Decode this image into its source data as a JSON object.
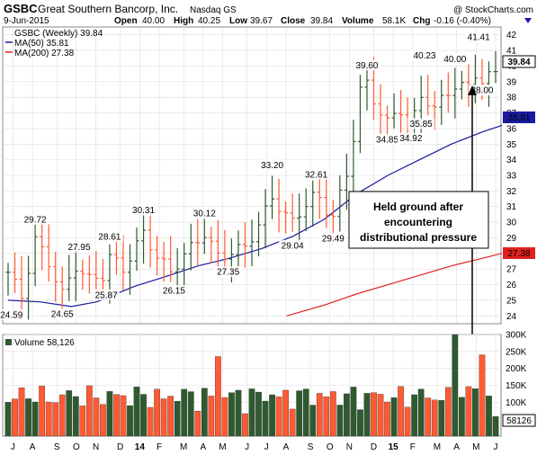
{
  "header": {
    "ticker": "GSBC",
    "company": "Great Southern Bancorp, Inc.",
    "exchange": "Nasdaq GS",
    "date": "9-Jun-2015",
    "open_label": "Open",
    "open": "40.00",
    "high_label": "High",
    "high": "40.25",
    "low_label": "Low",
    "low": "39.67",
    "close_label": "Close",
    "close": "39.84",
    "volume_label": "Volume",
    "volume": "58.1K",
    "chg_label": "Chg",
    "chg": "-0.16 (-0.40%)",
    "watermark": "@ StockCharts.com"
  },
  "legend": {
    "price": "GSBC (Weekly) 39.84",
    "ma50": "MA(50) 35.81",
    "ma200": "MA(200) 27.38",
    "volume": "Volume 58,126"
  },
  "right_tags": {
    "close": "39.84",
    "ma50": "35.81",
    "ma200": "27.38",
    "volume": "58126"
  },
  "annotation": {
    "lines": [
      "Held ground after",
      "encountering",
      "distributional pressure"
    ]
  },
  "colors": {
    "up": "#2f5a2f",
    "down": "#ff5a33",
    "ma50": "#1a1aa0",
    "ma200": "#e02020",
    "tag_close_bg": "#ffffff",
    "tag_ma50_bg": "#1a1aa0",
    "tag_ma200_bg": "#e02020",
    "grid": "#dddddd"
  },
  "chart_data": {
    "type": "ohlc",
    "x_labels": [
      "J",
      "A",
      "S",
      "O",
      "N",
      "D",
      "14",
      "F",
      "M",
      "A",
      "M",
      "J",
      "J",
      "A",
      "S",
      "O",
      "N",
      "D",
      "15",
      "F",
      "M",
      "A",
      "M",
      "J"
    ],
    "price_axis": {
      "ylim": [
        23.5,
        42.5
      ],
      "ticks": [
        24,
        25,
        26,
        27,
        28,
        29,
        30,
        31,
        32,
        33,
        34,
        35,
        36,
        37,
        38,
        39,
        40,
        41,
        42
      ]
    },
    "volume_axis": {
      "ylim": [
        0,
        300000
      ],
      "ticks": [
        "50K",
        "100K",
        "150K",
        "200K",
        "250K",
        "300K"
      ]
    },
    "price_labels": [
      {
        "text": "24.59",
        "week": 0.5,
        "value": 24.59
      },
      {
        "text": "29.72",
        "week": 4,
        "value": 29.72
      },
      {
        "text": "24.65",
        "week": 8,
        "value": 24.65
      },
      {
        "text": "27.95",
        "week": 10.5,
        "value": 27.95
      },
      {
        "text": "25.87",
        "week": 14.5,
        "value": 25.87
      },
      {
        "text": "28.61",
        "week": 15,
        "value": 28.61
      },
      {
        "text": "30.31",
        "week": 20,
        "value": 30.31
      },
      {
        "text": "26.15",
        "week": 24.5,
        "value": 26.15
      },
      {
        "text": "30.12",
        "week": 29,
        "value": 30.12
      },
      {
        "text": "27.35",
        "week": 32.5,
        "value": 27.35
      },
      {
        "text": "33.20",
        "week": 39,
        "value": 33.2
      },
      {
        "text": "29.04",
        "week": 42,
        "value": 29.04
      },
      {
        "text": "32.61",
        "week": 45.5,
        "value": 32.61
      },
      {
        "text": "29.49",
        "week": 48,
        "value": 29.49
      },
      {
        "text": "39.60",
        "week": 53,
        "value": 39.6
      },
      {
        "text": "34.85",
        "week": 56,
        "value": 34.85
      },
      {
        "text": "34.92",
        "week": 59.5,
        "value": 34.92
      },
      {
        "text": "40.23",
        "week": 61.5,
        "value": 40.23
      },
      {
        "text": "35.85",
        "week": 61,
        "value": 35.85
      },
      {
        "text": "40.00",
        "week": 66,
        "value": 40.0
      },
      {
        "text": "41.41",
        "week": 69.5,
        "value": 41.41
      },
      {
        "text": "38.00",
        "week": 70,
        "value": 38.0
      }
    ]
  }
}
